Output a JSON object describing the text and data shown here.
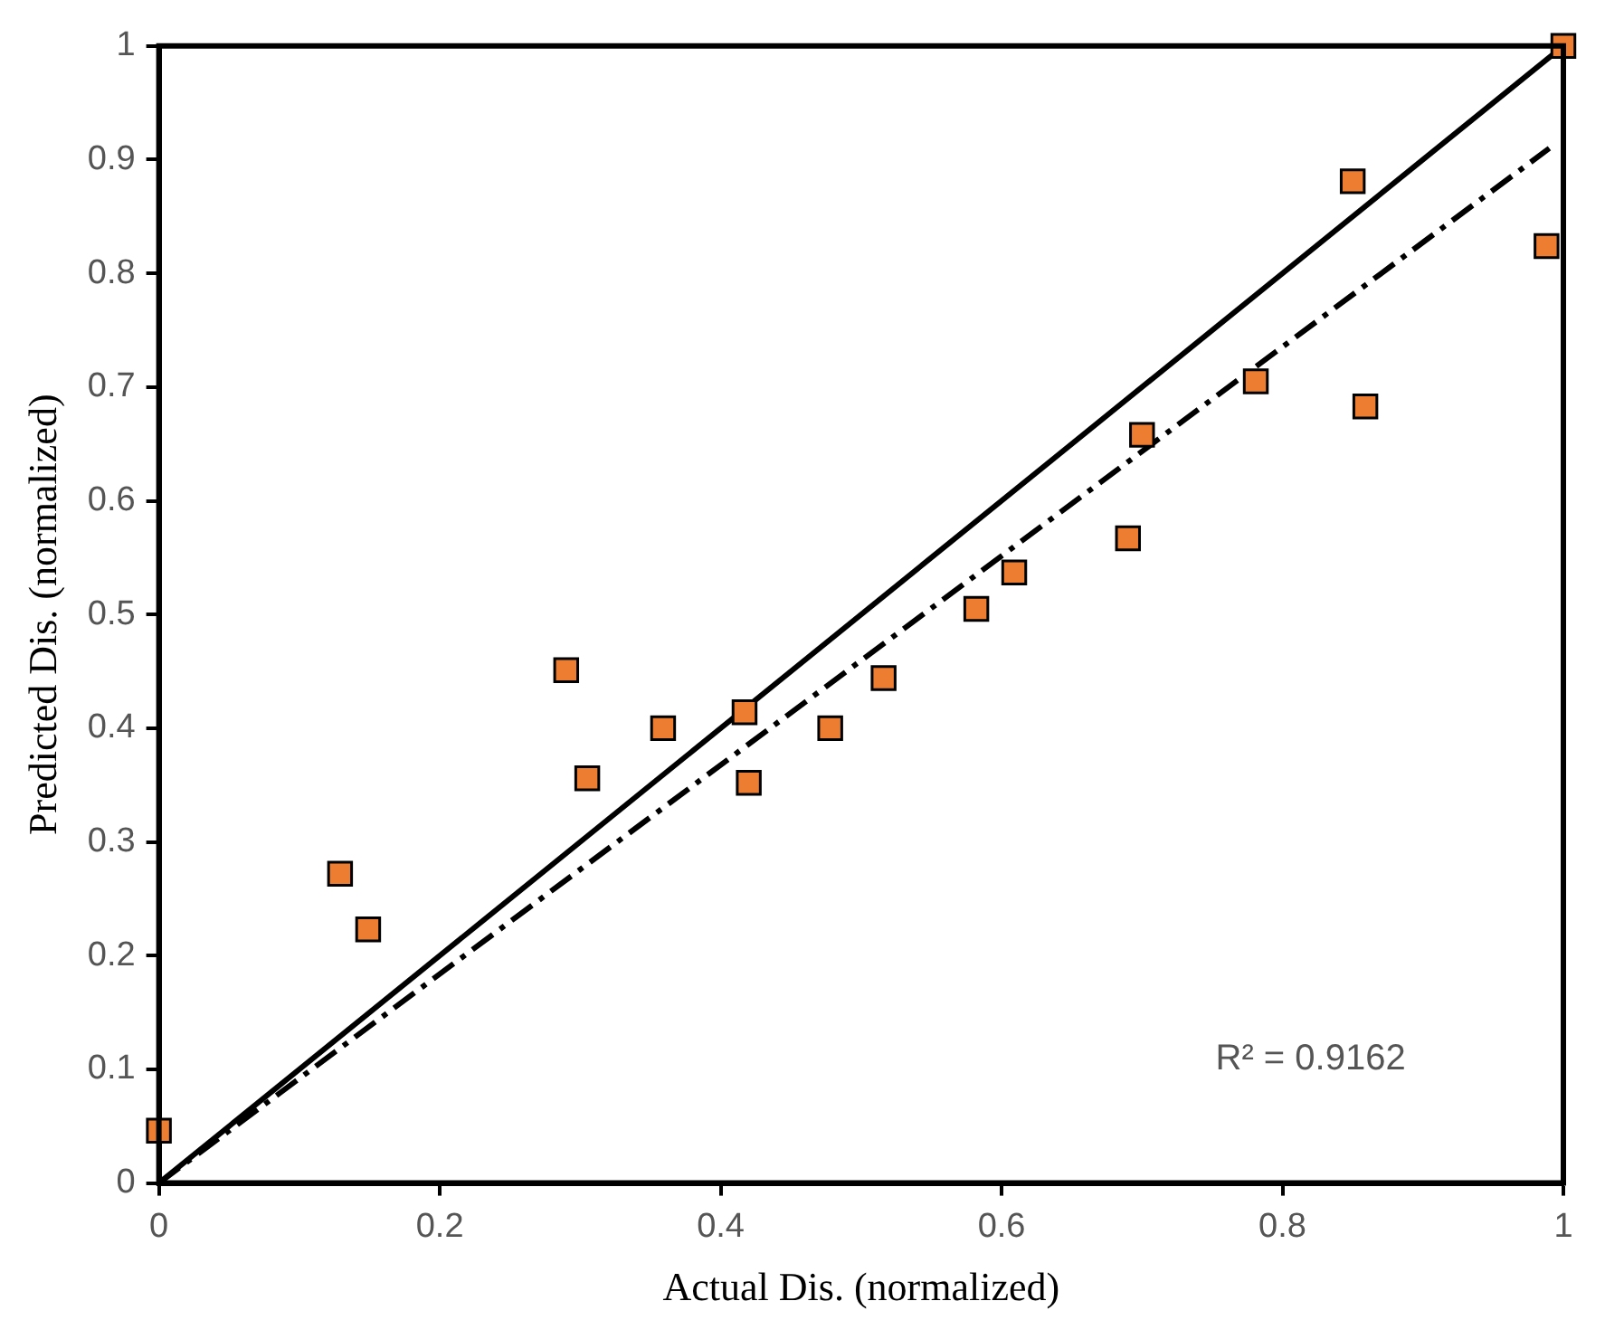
{
  "chart_data": {
    "type": "scatter",
    "xlabel": "Actual Dis. (normalized)",
    "ylabel": "Predicted Dis. (normalized)",
    "xlim": [
      0,
      1
    ],
    "ylim": [
      0,
      1
    ],
    "xticks": [
      0,
      0.2,
      0.4,
      0.6,
      0.8,
      1
    ],
    "yticks": [
      0,
      0.1,
      0.2,
      0.3,
      0.4,
      0.5,
      0.6,
      0.7,
      0.8,
      0.9,
      1
    ],
    "grid": false,
    "legend": false,
    "annotations": [
      "R² = 0.9162"
    ],
    "series": [
      {
        "marker": "square",
        "color": "#ed7d31",
        "x": [
          0,
          0.129,
          0.149,
          0.29,
          0.305,
          0.359,
          0.417,
          0.42,
          0.478,
          0.516,
          0.582,
          0.609,
          0.69,
          0.7,
          0.781,
          0.85,
          0.859,
          0.988,
          1
        ],
        "values": [
          0.046,
          0.272,
          0.223,
          0.451,
          0.356,
          0.4,
          0.414,
          0.352,
          0.4,
          0.444,
          0.505,
          0.537,
          0.567,
          0.658,
          0.705,
          0.881,
          0.683,
          0.824,
          1
        ]
      },
      {
        "type": "line",
        "marker": "none",
        "color": "#000000",
        "line_style": "solid",
        "x": [
          0,
          1
        ],
        "values": [
          0,
          1
        ]
      },
      {
        "type": "line",
        "marker": "none",
        "color": "#000000",
        "line_style": "dashed",
        "x": [
          0,
          0.99
        ],
        "values": [
          0,
          0.91
        ]
      }
    ]
  }
}
